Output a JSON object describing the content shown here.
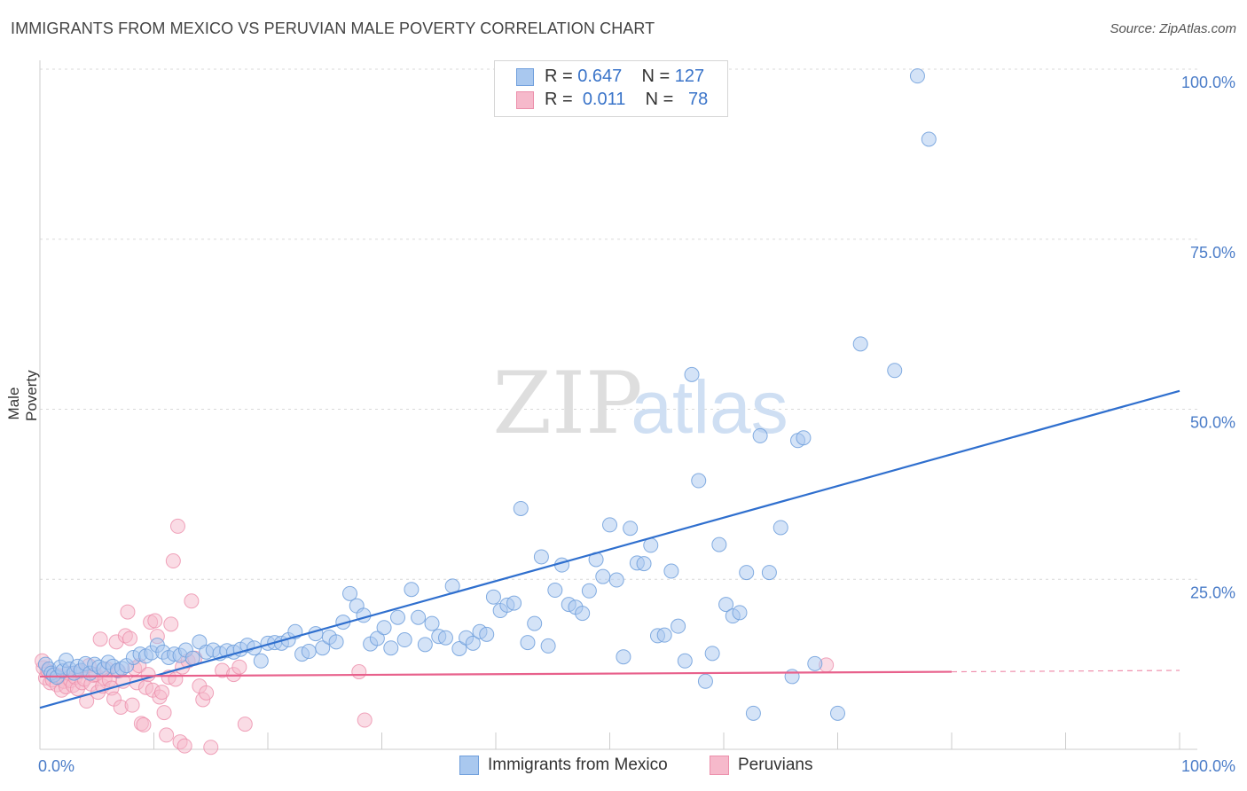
{
  "header": {
    "title": "IMMIGRANTS FROM MEXICO VS PERUVIAN MALE POVERTY CORRELATION CHART",
    "source": "Source: ZipAtlas.com"
  },
  "watermark": {
    "zip": "ZIP",
    "atlas": "atlas"
  },
  "legend": {
    "rows": [
      {
        "r_label": "R =",
        "r_value": "0.647",
        "n_label": "N =",
        "n_value": "127"
      },
      {
        "r_label": "R =",
        "r_value": "0.011",
        "n_label": "N =",
        "n_value": "78"
      }
    ]
  },
  "bottom_legend": {
    "series1": "Immigrants from Mexico",
    "series2": "Peruvians"
  },
  "colors": {
    "blue_fill": "#a9c8ef",
    "blue_stroke": "#6f9fdc",
    "blue_line": "#2f6fce",
    "pink_fill": "#f6b9cb",
    "pink_stroke": "#ec8fab",
    "pink_line": "#e8618c",
    "axis_text": "#4a7cc8"
  },
  "chart_data": {
    "type": "scatter",
    "title": "IMMIGRANTS FROM MEXICO VS PERUVIAN MALE POVERTY CORRELATION CHART",
    "xlabel": "",
    "ylabel": "Male Poverty",
    "xlim": [
      0,
      100
    ],
    "ylim": [
      0,
      100
    ],
    "x_tick_labels": [
      "0.0%",
      "100.0%"
    ],
    "y_ticks": [
      25,
      50,
      75,
      100
    ],
    "y_tick_labels": [
      "25.0%",
      "50.0%",
      "75.0%",
      "100.0%"
    ],
    "grid": true,
    "series": [
      {
        "name": "Immigrants from Mexico",
        "R": 0.647,
        "N": 127,
        "trend": {
          "x0": 0,
          "y0": 6.1,
          "x1": 100,
          "y1": 52.7
        },
        "points": [
          [
            0.5,
            12.5
          ],
          [
            0.8,
            11.8
          ],
          [
            1,
            11.2
          ],
          [
            1.2,
            10.9
          ],
          [
            1.5,
            10.6
          ],
          [
            1.8,
            12.1
          ],
          [
            2,
            11.5
          ],
          [
            2.3,
            13.1
          ],
          [
            2.6,
            11.8
          ],
          [
            3,
            11.2
          ],
          [
            3.3,
            12.2
          ],
          [
            3.6,
            11.6
          ],
          [
            4,
            12.6
          ],
          [
            4.4,
            11.2
          ],
          [
            4.8,
            12.5
          ],
          [
            5.2,
            12.1
          ],
          [
            5.6,
            11.8
          ],
          [
            6,
            12.8
          ],
          [
            6.4,
            12.2
          ],
          [
            6.8,
            11.6
          ],
          [
            7.2,
            11.9
          ],
          [
            7.6,
            12.3
          ],
          [
            8.2,
            13.5
          ],
          [
            8.8,
            14.0
          ],
          [
            9.3,
            13.7
          ],
          [
            9.8,
            14.2
          ],
          [
            10.3,
            15.3
          ],
          [
            10.8,
            14.3
          ],
          [
            11.3,
            13.5
          ],
          [
            11.8,
            14.0
          ],
          [
            12.3,
            13.8
          ],
          [
            12.8,
            14.6
          ],
          [
            13.4,
            13.4
          ],
          [
            14,
            15.8
          ],
          [
            14.6,
            14.3
          ],
          [
            15.2,
            14.6
          ],
          [
            15.8,
            14.1
          ],
          [
            16.4,
            14.5
          ],
          [
            17,
            14.3
          ],
          [
            17.6,
            14.7
          ],
          [
            18.2,
            15.3
          ],
          [
            18.8,
            14.9
          ],
          [
            19.4,
            13.0
          ],
          [
            20,
            15.6
          ],
          [
            20.6,
            15.7
          ],
          [
            21.2,
            15.6
          ],
          [
            21.8,
            16.1
          ],
          [
            22.4,
            17.3
          ],
          [
            23,
            14.0
          ],
          [
            23.6,
            14.4
          ],
          [
            24.2,
            17.0
          ],
          [
            24.8,
            14.9
          ],
          [
            25.4,
            16.5
          ],
          [
            26,
            15.8
          ],
          [
            26.6,
            18.7
          ],
          [
            27.2,
            22.9
          ],
          [
            27.8,
            21.1
          ],
          [
            28.4,
            19.7
          ],
          [
            29,
            15.5
          ],
          [
            29.6,
            16.3
          ],
          [
            30.2,
            17.9
          ],
          [
            30.8,
            14.9
          ],
          [
            31.4,
            19.4
          ],
          [
            32,
            16.1
          ],
          [
            32.6,
            23.5
          ],
          [
            33.2,
            19.4
          ],
          [
            33.8,
            15.4
          ],
          [
            34.4,
            18.5
          ],
          [
            35,
            16.6
          ],
          [
            35.6,
            16.4
          ],
          [
            36.2,
            24.0
          ],
          [
            36.8,
            14.8
          ],
          [
            37.4,
            16.4
          ],
          [
            38,
            15.6
          ],
          [
            38.6,
            17.3
          ],
          [
            39.2,
            16.9
          ],
          [
            39.8,
            22.4
          ],
          [
            40.4,
            20.4
          ],
          [
            41,
            21.2
          ],
          [
            41.6,
            21.5
          ],
          [
            42.2,
            35.4
          ],
          [
            42.8,
            15.7
          ],
          [
            43.4,
            18.5
          ],
          [
            44,
            28.3
          ],
          [
            44.6,
            15.2
          ],
          [
            45.2,
            23.4
          ],
          [
            45.8,
            27.1
          ],
          [
            46.4,
            21.3
          ],
          [
            47,
            20.9
          ],
          [
            47.6,
            20.0
          ],
          [
            48.2,
            23.3
          ],
          [
            48.8,
            27.9
          ],
          [
            49.4,
            25.4
          ],
          [
            50,
            33.0
          ],
          [
            50.6,
            24.9
          ],
          [
            51.2,
            13.6
          ],
          [
            51.8,
            32.5
          ],
          [
            52.4,
            27.4
          ],
          [
            53,
            27.3
          ],
          [
            53.6,
            30.0
          ],
          [
            54.2,
            16.7
          ],
          [
            54.8,
            16.8
          ],
          [
            55.4,
            26.2
          ],
          [
            56,
            18.1
          ],
          [
            56.6,
            13.0
          ],
          [
            57.2,
            55.1
          ],
          [
            57.8,
            39.5
          ],
          [
            58.4,
            10.0
          ],
          [
            59,
            14.1
          ],
          [
            59.6,
            30.1
          ],
          [
            60.2,
            21.3
          ],
          [
            60.8,
            19.6
          ],
          [
            61.4,
            20.1
          ],
          [
            62,
            26.0
          ],
          [
            62.6,
            5.3
          ],
          [
            63.2,
            46.1
          ],
          [
            64,
            26.0
          ],
          [
            65,
            32.6
          ],
          [
            66,
            10.7
          ],
          [
            66.5,
            45.4
          ],
          [
            67,
            45.8
          ],
          [
            68,
            12.6
          ],
          [
            70,
            5.3
          ],
          [
            72,
            59.6
          ],
          [
            75,
            55.7
          ],
          [
            77,
            99.0
          ],
          [
            78,
            89.7
          ]
        ]
      },
      {
        "name": "Peruvians",
        "R": 0.011,
        "N": 78,
        "trend": {
          "x0": 0,
          "y0": 10.7,
          "x1": 80,
          "y1": 11.4
        },
        "trend_dashed": {
          "x0": 80,
          "y0": 11.4,
          "x1": 100,
          "y1": 11.6
        },
        "points": [
          [
            0.3,
            12.0
          ],
          [
            0.5,
            10.5
          ],
          [
            0.7,
            11.5
          ],
          [
            0.9,
            9.8
          ],
          [
            1.1,
            10.2
          ],
          [
            1.3,
            11.0
          ],
          [
            1.5,
            9.5
          ],
          [
            1.7,
            10.8
          ],
          [
            1.9,
            8.7
          ],
          [
            2.1,
            10.0
          ],
          [
            2.3,
            9.2
          ],
          [
            2.5,
            11.2
          ],
          [
            2.7,
            10.1
          ],
          [
            2.9,
            9.4
          ],
          [
            3.1,
            10.6
          ],
          [
            3.3,
            8.9
          ],
          [
            3.5,
            11.4
          ],
          [
            3.7,
            9.8
          ],
          [
            3.9,
            10.3
          ],
          [
            4.1,
            7.1
          ],
          [
            4.3,
            12.3
          ],
          [
            4.5,
            9.6
          ],
          [
            4.7,
            10.9
          ],
          [
            4.9,
            11.0
          ],
          [
            5.1,
            8.4
          ],
          [
            5.3,
            16.2
          ],
          [
            5.5,
            9.3
          ],
          [
            5.7,
            10.4
          ],
          [
            5.9,
            11.8
          ],
          [
            6.1,
            10.2
          ],
          [
            6.3,
            9.0
          ],
          [
            6.5,
            7.4
          ],
          [
            6.7,
            15.8
          ],
          [
            6.9,
            11.5
          ],
          [
            7.1,
            6.2
          ],
          [
            7.3,
            10.0
          ],
          [
            7.5,
            16.7
          ],
          [
            7.7,
            20.2
          ],
          [
            7.9,
            16.3
          ],
          [
            8.1,
            6.5
          ],
          [
            8.3,
            11.9
          ],
          [
            8.5,
            9.8
          ],
          [
            8.7,
            12.3
          ],
          [
            8.9,
            3.8
          ],
          [
            9.1,
            3.6
          ],
          [
            9.3,
            9.1
          ],
          [
            9.5,
            11.0
          ],
          [
            9.7,
            18.7
          ],
          [
            9.9,
            8.7
          ],
          [
            10.1,
            18.9
          ],
          [
            10.3,
            16.6
          ],
          [
            10.5,
            7.7
          ],
          [
            10.7,
            8.4
          ],
          [
            10.9,
            5.4
          ],
          [
            11.1,
            2.1
          ],
          [
            11.3,
            10.6
          ],
          [
            11.5,
            18.4
          ],
          [
            11.7,
            27.7
          ],
          [
            11.9,
            10.3
          ],
          [
            12.1,
            32.8
          ],
          [
            12.3,
            1.1
          ],
          [
            12.5,
            12.1
          ],
          [
            12.7,
            0.5
          ],
          [
            13,
            13.0
          ],
          [
            13.3,
            21.8
          ],
          [
            13.6,
            13.4
          ],
          [
            14,
            9.3
          ],
          [
            14.3,
            7.3
          ],
          [
            14.6,
            8.3
          ],
          [
            15,
            0.3
          ],
          [
            16,
            11.6
          ],
          [
            17,
            11.0
          ],
          [
            17.5,
            12.1
          ],
          [
            18,
            3.7
          ],
          [
            28,
            11.4
          ],
          [
            28.5,
            4.3
          ],
          [
            69,
            12.4
          ],
          [
            0.2,
            13.0
          ]
        ]
      }
    ]
  }
}
